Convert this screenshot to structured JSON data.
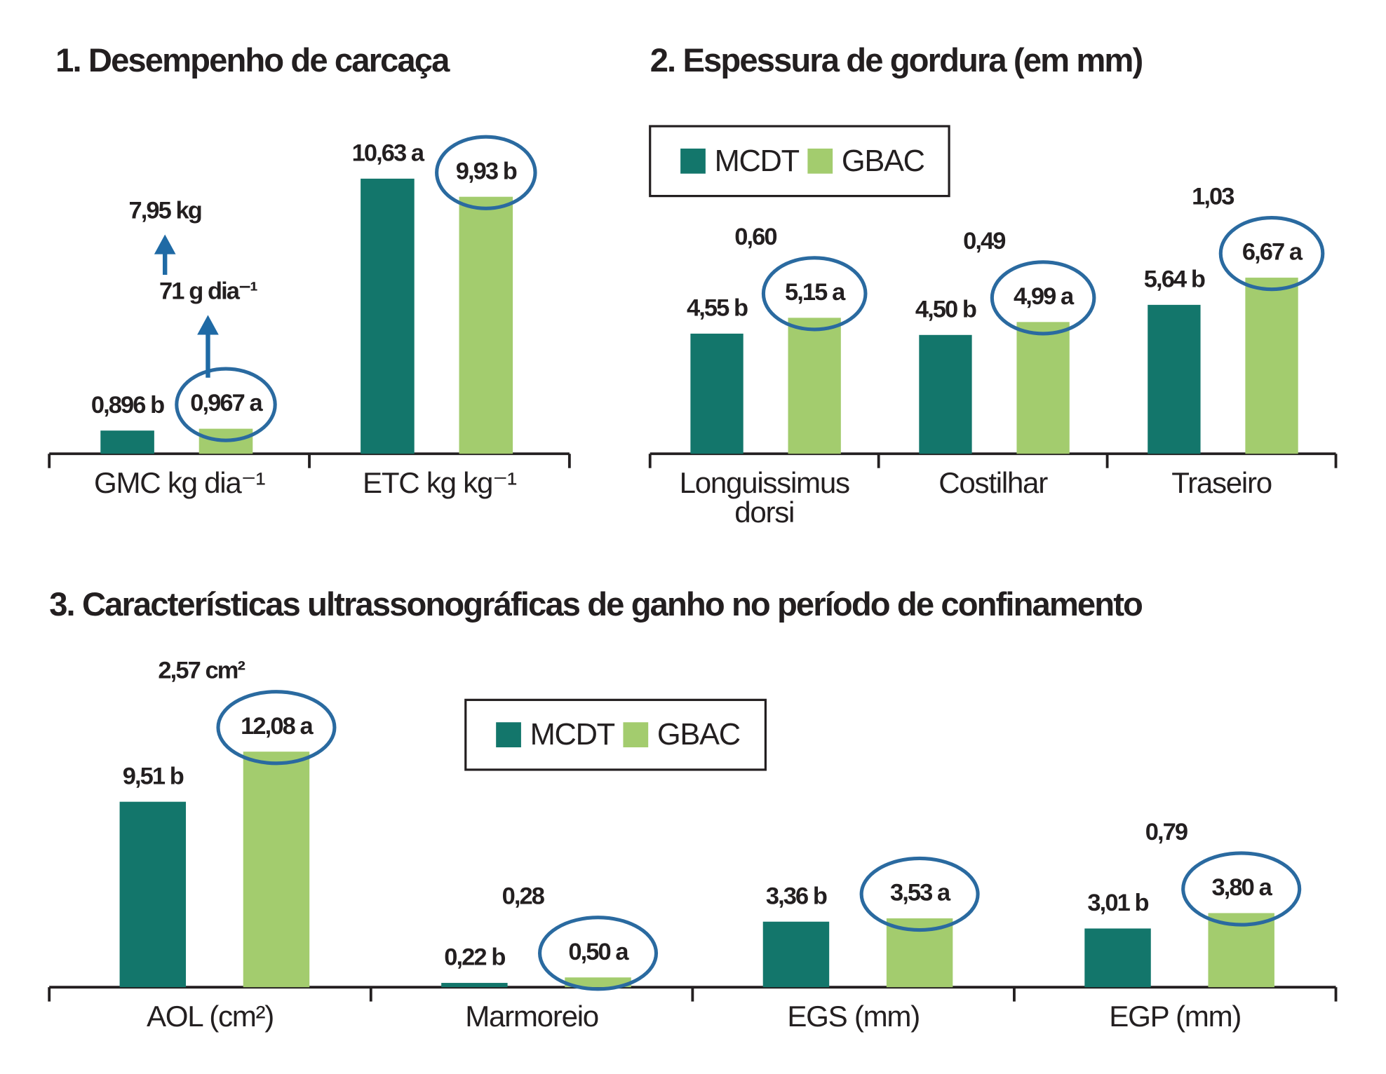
{
  "chart_data": [
    {
      "type": "bar",
      "title": "1. Desempenho de carcaça",
      "categories": [
        "GMC kg dia⁻¹",
        "ETC kg kg⁻¹"
      ],
      "series": [
        {
          "color": "#13766b",
          "values": [
            0.896,
            10.63
          ],
          "value_labels": [
            "0,896 b",
            "10,63 a"
          ]
        },
        {
          "color": "#a3cc6e",
          "values": [
            0.967,
            9.93
          ],
          "value_labels": [
            "0,967 a",
            "9,93 b"
          ]
        }
      ],
      "ylim": [
        0,
        12
      ],
      "circled_series": 1,
      "legend": false,
      "annotations": [
        "71 g dia⁻¹",
        "7,95 kg"
      ]
    },
    {
      "type": "bar",
      "title": "2. Espessura de gordura (em mm)",
      "categories": [
        "Longuissimus dorsi",
        "Costilhar",
        "Traseiro"
      ],
      "series": [
        {
          "name": "MCDT",
          "color": "#13766b",
          "values": [
            4.55,
            4.5,
            5.64
          ],
          "value_labels": [
            "4,55 b",
            "4,50 b",
            "5,64 b"
          ]
        },
        {
          "name": "GBAC",
          "color": "#a3cc6e",
          "values": [
            5.15,
            4.99,
            6.67
          ],
          "value_labels": [
            "5,15 a",
            "4,99 a",
            "6,67 a"
          ]
        }
      ],
      "ylim": [
        0,
        8
      ],
      "circled_series": 1,
      "legend": true,
      "annotations": [
        "0,60",
        "0,49",
        "1,03"
      ]
    },
    {
      "type": "bar",
      "title": "3. Características ultrassonográficas de ganho no período de confinamento",
      "categories": [
        "AOL (cm²)",
        "Marmoreio",
        "EGS (mm)",
        "EGP (mm)"
      ],
      "series": [
        {
          "name": "MCDT",
          "color": "#13766b",
          "values": [
            9.51,
            0.22,
            3.36,
            3.01
          ],
          "value_labels": [
            "9,51 b",
            "0,22 b",
            "3,36 b",
            "3,01 b"
          ]
        },
        {
          "name": "GBAC",
          "color": "#a3cc6e",
          "values": [
            12.08,
            0.5,
            3.53,
            3.8
          ],
          "value_labels": [
            "12,08 a",
            "0,50 a",
            "3,53 a",
            "3,80 a"
          ]
        }
      ],
      "ylim": [
        0,
        14
      ],
      "circled_series": 1,
      "legend": true,
      "annotations": [
        "2,57 cm²",
        "0,28",
        null,
        "0,79"
      ]
    }
  ]
}
